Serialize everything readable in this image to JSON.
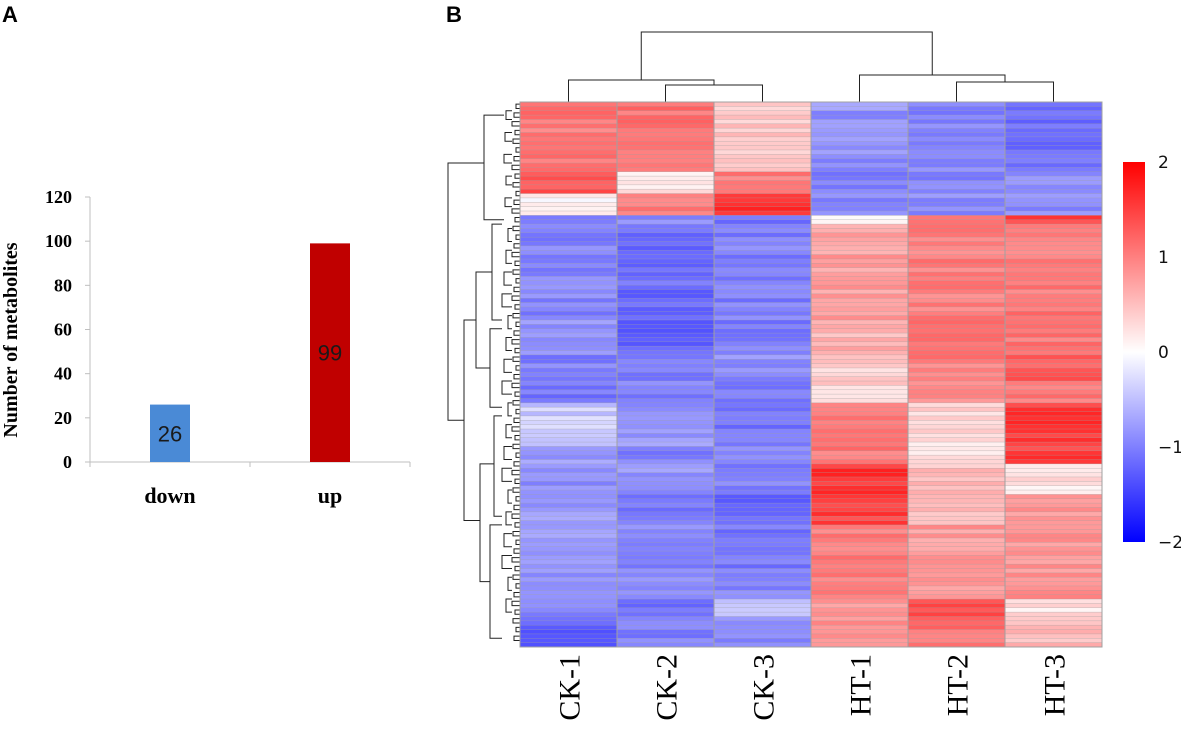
{
  "panels": {
    "a_label": "A",
    "b_label": "B"
  },
  "chart_data": [
    {
      "type": "bar",
      "categories": [
        "down",
        "up"
      ],
      "values": [
        26,
        99
      ],
      "value_labels": [
        "26",
        "99"
      ],
      "colors": [
        "#4a8ad6",
        "#c00000"
      ],
      "title": "",
      "xlabel": "",
      "ylabel": "Number of metabolites",
      "ylim": [
        0,
        120
      ],
      "yticks": [
        0,
        20,
        40,
        60,
        80,
        100,
        120
      ],
      "ytick_labels": [
        "0",
        "20",
        "40",
        "60",
        "80",
        "100",
        "120"
      ]
    },
    {
      "type": "heatmap",
      "columns": [
        "CK-1",
        "CK-2",
        "CK-3",
        "HT-1",
        "HT-2",
        "HT-3"
      ],
      "row_count": 125,
      "scale_range": [
        -2,
        2
      ],
      "colorbar_ticks": [
        2,
        1,
        0,
        -1,
        -2
      ],
      "colorbar_labels": [
        "2",
        "1",
        "0",
        "−1",
        "−2"
      ],
      "colors": {
        "low": "#0000ff",
        "mid": "#ffffff",
        "high": "#ff0000",
        "border": "#a0a0a0"
      },
      "column_dendrogram": "((CK-1,(CK-2,CK-3)),(HT-1,(HT-2,HT-3)))",
      "blocks": [
        {
          "rows": 16,
          "values": [
            1.05,
            1.1,
            0.45,
            -0.85,
            -0.95,
            -1.1
          ]
        },
        {
          "rows": 5,
          "values": [
            1.3,
            0.2,
            1.05,
            -1.05,
            -0.95,
            -0.95
          ]
        },
        {
          "rows": 5,
          "values": [
            0.05,
            1.0,
            1.6,
            -0.9,
            -0.9,
            -0.9
          ]
        },
        {
          "rows": 2,
          "values": [
            -1.0,
            -0.95,
            -1.05,
            0.05,
            1.05,
            1.45
          ]
        },
        {
          "rows": 22,
          "values": [
            -0.95,
            -1.15,
            -1.0,
            0.75,
            1.0,
            1.05
          ]
        },
        {
          "rows": 8,
          "values": [
            -0.8,
            -1.2,
            -1.05,
            0.6,
            1.05,
            1.05
          ]
        },
        {
          "rows": 6,
          "values": [
            -1.0,
            -1.0,
            -0.9,
            0.35,
            1.0,
            1.3
          ]
        },
        {
          "rows": 5,
          "values": [
            -1.1,
            -1.0,
            -1.0,
            0.35,
            0.95,
            1.05
          ]
        },
        {
          "rows": 10,
          "values": [
            -0.4,
            -0.8,
            -1.1,
            1.1,
            0.3,
            1.55
          ]
        },
        {
          "rows": 4,
          "values": [
            -0.8,
            -0.95,
            -0.9,
            1.05,
            0.25,
            1.5
          ]
        },
        {
          "rows": 7,
          "values": [
            -0.85,
            -0.85,
            -0.95,
            1.6,
            0.5,
            0.2
          ]
        },
        {
          "rows": 7,
          "values": [
            -0.75,
            -1.05,
            -1.15,
            1.5,
            0.55,
            0.8
          ]
        },
        {
          "rows": 10,
          "values": [
            -0.75,
            -0.95,
            -1.05,
            1.0,
            0.8,
            0.85
          ]
        },
        {
          "rows": 7,
          "values": [
            -0.85,
            -0.8,
            -0.9,
            1.05,
            0.8,
            0.85
          ]
        },
        {
          "rows": 4,
          "values": [
            -0.9,
            -1.1,
            -0.55,
            0.85,
            1.35,
            0.25
          ]
        },
        {
          "rows": 7,
          "values": [
            -1.25,
            -1.0,
            -0.95,
            0.85,
            1.1,
            0.55
          ]
        }
      ]
    }
  ]
}
